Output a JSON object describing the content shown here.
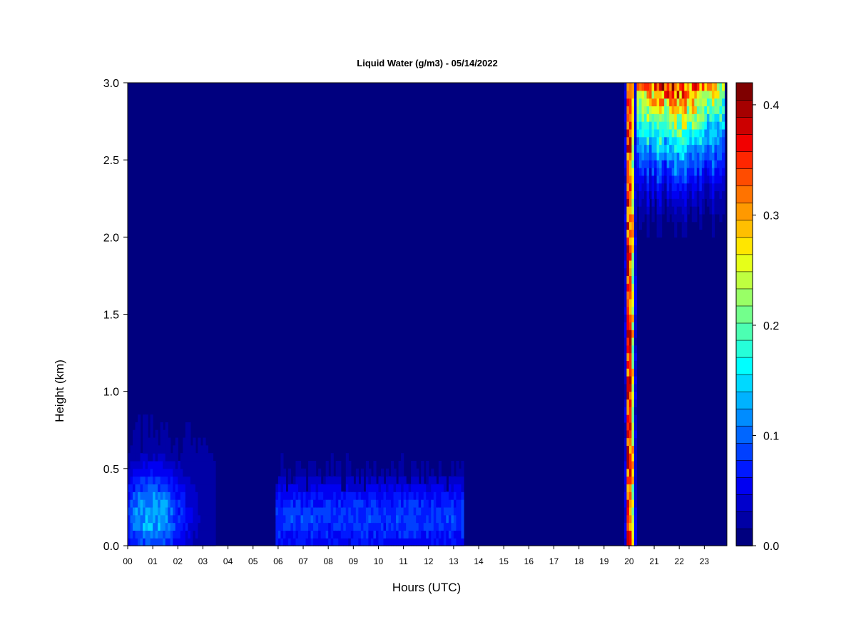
{
  "chart_data": {
    "type": "heatmap",
    "title": "Liquid Water (g/m3) - 05/14/2022",
    "xlabel": "Hours (UTC)",
    "ylabel": "Height (km)",
    "x_ticks": [
      "00",
      "01",
      "02",
      "03",
      "04",
      "05",
      "06",
      "07",
      "08",
      "09",
      "10",
      "11",
      "12",
      "13",
      "14",
      "15",
      "16",
      "17",
      "18",
      "19",
      "20",
      "21",
      "22",
      "23"
    ],
    "y_ticks": [
      "0.0",
      "0.5",
      "1.0",
      "1.5",
      "2.0",
      "2.5",
      "3.0"
    ],
    "colorbar_ticks": [
      "0.0",
      "0.1",
      "0.2",
      "0.3",
      "0.4"
    ],
    "xlim": [
      0,
      23.9
    ],
    "ylim": [
      0,
      3.0
    ],
    "colorbar_range": [
      0,
      0.42
    ],
    "colors": [
      "#00007f",
      "#0000a5",
      "#0000cc",
      "#0000f2",
      "#0019ff",
      "#0040ff",
      "#0066ff",
      "#008cff",
      "#00b2ff",
      "#00d9ff",
      "#00ffff",
      "#26ffd9",
      "#4cffb2",
      "#73ff8c",
      "#99ff66",
      "#bfff40",
      "#e6ff19",
      "#ffe600",
      "#ffbf00",
      "#ff9900",
      "#ff7300",
      "#ff4c00",
      "#ff2600",
      "#f20000",
      "#cc0000",
      "#a50000",
      "#7f0000"
    ],
    "cloud_regions": [
      {
        "hours": [
          0.0,
          3.5
        ],
        "top_km": 0.9,
        "peak": 0.12
      },
      {
        "hours": [
          5.9,
          13.4
        ],
        "top_km": 0.7,
        "peak": 0.07
      },
      {
        "hours": [
          19.8,
          20.3
        ],
        "top_km": 3.0,
        "peak": 0.4
      },
      {
        "hours": [
          20.3,
          23.8
        ],
        "base_km": 2.0,
        "peak": 0.35
      }
    ]
  }
}
